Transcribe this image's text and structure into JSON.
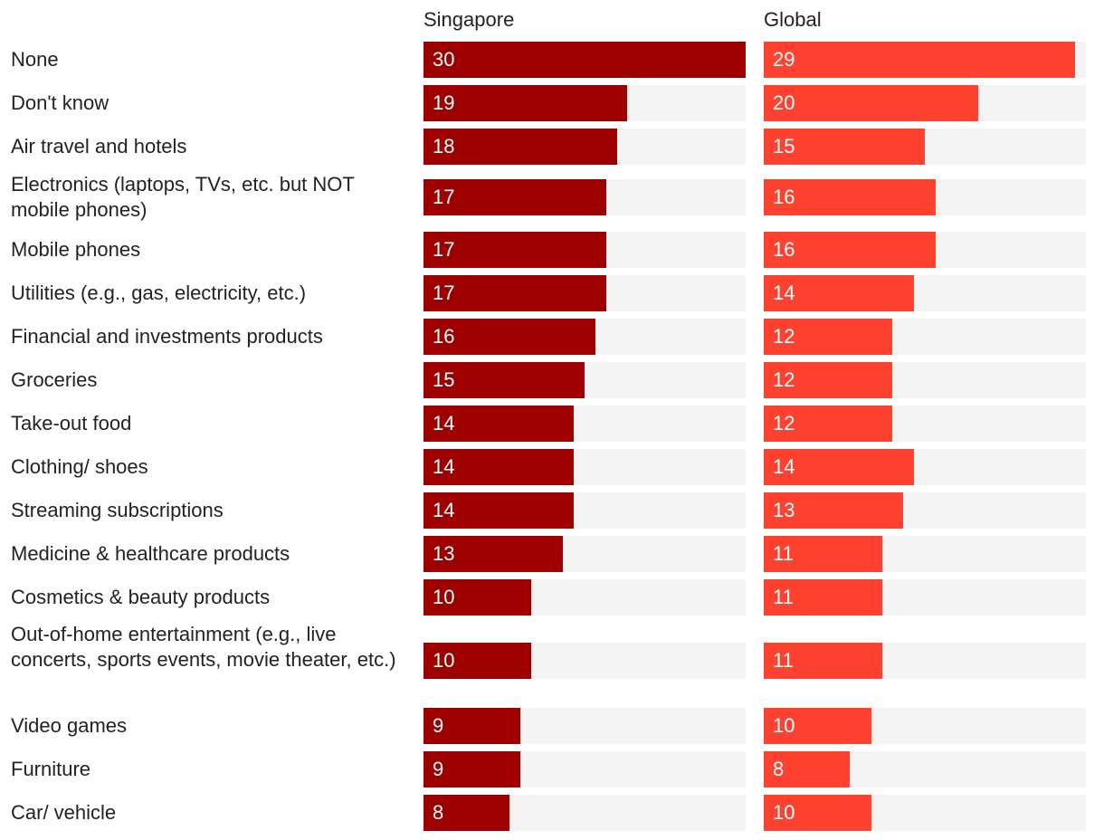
{
  "chart_data": {
    "type": "bar",
    "orientation": "horizontal",
    "xlim": [
      0,
      30
    ],
    "categories": [
      "None",
      "Don't know",
      "Air travel and hotels",
      "Electronics (laptops, TVs, etc. but NOT mobile phones)",
      "Mobile phones",
      "Utilities (e.g., gas, electricity, etc.)",
      "Financial and investments products",
      "Groceries",
      "Take-out food",
      "Clothing/ shoes",
      "Streaming subscriptions",
      "Medicine & healthcare products",
      "Cosmetics & beauty products",
      "Out-of-home entertainment (e.g., live concerts, sports events, movie theater, etc.)",
      "Video games",
      "Furniture",
      "Car/ vehicle"
    ],
    "series": [
      {
        "name": "Singapore",
        "color": "#9e0000",
        "values": [
          30,
          19,
          18,
          17,
          17,
          17,
          16,
          15,
          14,
          14,
          14,
          13,
          10,
          10,
          9,
          9,
          8
        ]
      },
      {
        "name": "Global",
        "color": "#ff412f",
        "values": [
          29,
          20,
          15,
          16,
          16,
          14,
          12,
          12,
          12,
          14,
          13,
          11,
          11,
          11,
          10,
          8,
          10
        ]
      }
    ],
    "track_color": "#f3f3f3"
  }
}
